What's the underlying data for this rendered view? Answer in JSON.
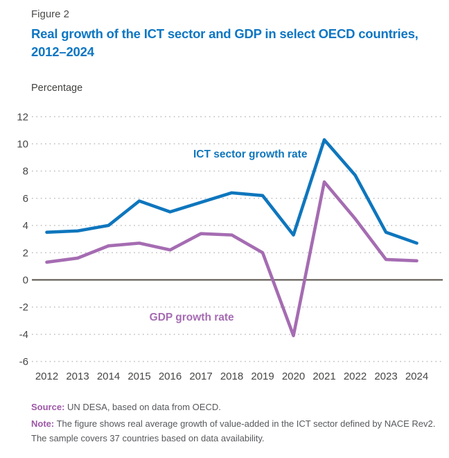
{
  "figure_label": "Figure 2",
  "title": "Real growth of the ICT sector and GDP in select OECD countries, 2012–2024",
  "y_axis_title": "Percentage",
  "chart_data": {
    "type": "line",
    "x": [
      2012,
      2013,
      2014,
      2015,
      2016,
      2017,
      2018,
      2019,
      2020,
      2021,
      2022,
      2023,
      2024
    ],
    "series": [
      {
        "name": "ICT sector growth rate",
        "color": "#0e76bd",
        "values": [
          3.5,
          3.6,
          4.0,
          5.8,
          5.0,
          5.7,
          6.4,
          6.2,
          3.3,
          10.3,
          7.7,
          3.5,
          2.7
        ],
        "label_anchor": {
          "x": 2018.6,
          "y": 9.0
        }
      },
      {
        "name": "GDP growth rate",
        "color": "#a56cb2",
        "values": [
          1.3,
          1.6,
          2.5,
          2.7,
          2.2,
          3.4,
          3.3,
          2.0,
          -4.1,
          7.2,
          4.5,
          1.5,
          1.4
        ],
        "label_anchor": {
          "x": 2016.7,
          "y": -3.0
        }
      }
    ],
    "title": "Real growth of the ICT sector and GDP in select OECD countries, 2012–2024",
    "xlabel": "",
    "ylabel": "Percentage",
    "ylim": [
      -6,
      12
    ],
    "ytick_step": 2,
    "grid": "horizontal dotted",
    "zero_line": true,
    "legend_position": "inline labels on chart"
  },
  "footer": {
    "source_label": "Source:",
    "source_text": "UN DESA, based on data from OECD.",
    "note_label": "Note:",
    "note_lines": [
      "The figure shows real average growth of value-added in the ICT sector defined by NACE Rev2.",
      "The sample covers 37 countries based on data availability."
    ]
  },
  "colors": {
    "title_blue": "#0d76c3",
    "ict_line_blue": "#0e76bd",
    "gdp_line_purple": "#a56cb2",
    "footer_label_purple": "#9d57a6",
    "zero_axis": "#6e6862",
    "gridline": "#bcbcbc",
    "tick_text": "#474645"
  }
}
